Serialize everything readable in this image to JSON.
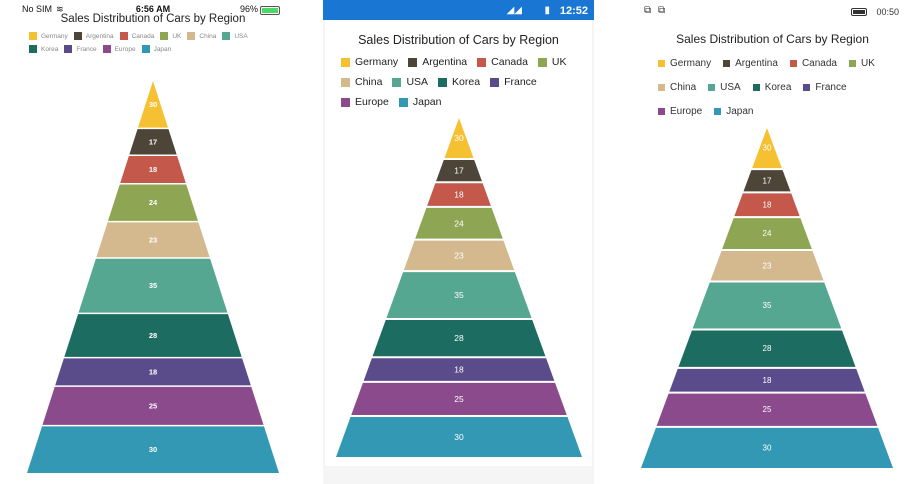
{
  "status_ios": {
    "carrier": "No SIM",
    "time": "6:56 AM",
    "battery": "96%"
  },
  "status_android": {
    "time": "12:52"
  },
  "status_uwp": {
    "time": "00:50"
  },
  "colors": {
    "Germany": "#f5c133",
    "Argentina": "#4d4538",
    "Canada": "#c3584b",
    "UK": "#8ea653",
    "China": "#d4b98e",
    "USA": "#56a792",
    "Korea": "#1d6c62",
    "France": "#5a4c8a",
    "Europe": "#8b4a8c",
    "Japan": "#3398b3"
  },
  "chart_data": [
    {
      "type": "pyramid",
      "title": "Sales Distribution of Cars by Region",
      "categories": [
        "Germany",
        "Argentina",
        "Canada",
        "UK",
        "China",
        "USA",
        "Korea",
        "France",
        "Europe",
        "Japan"
      ],
      "values": [
        30,
        17,
        18,
        24,
        23,
        35,
        28,
        18,
        25,
        30
      ],
      "legend_position": "top"
    },
    {
      "type": "pyramid",
      "title": "Sales Distribution of Cars by Region",
      "categories": [
        "Germany",
        "Argentina",
        "Canada",
        "UK",
        "China",
        "USA",
        "Korea",
        "France",
        "Europe",
        "Japan"
      ],
      "values": [
        30,
        17,
        18,
        24,
        23,
        35,
        28,
        18,
        25,
        30
      ],
      "legend_position": "top"
    },
    {
      "type": "pyramid",
      "title": "Sales Distribution of Cars by Region",
      "categories": [
        "Germany",
        "Argentina",
        "Canada",
        "UK",
        "China",
        "USA",
        "Korea",
        "France",
        "Europe",
        "Japan"
      ],
      "values": [
        30,
        17,
        18,
        24,
        23,
        35,
        28,
        18,
        25,
        30
      ],
      "legend_position": "top"
    }
  ]
}
